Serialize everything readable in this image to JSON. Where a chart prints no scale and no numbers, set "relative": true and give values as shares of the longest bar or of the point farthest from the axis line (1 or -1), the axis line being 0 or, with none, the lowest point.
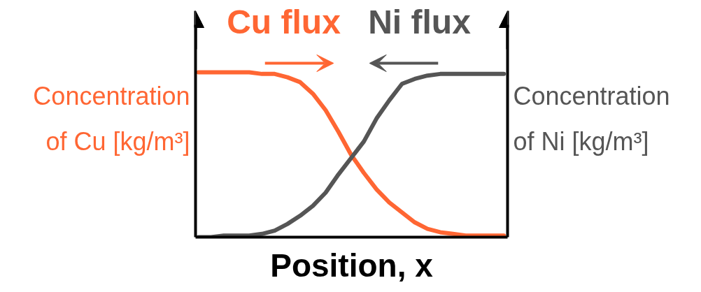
{
  "chart_data": {
    "type": "line",
    "relative": true,
    "xlabel": "Position, x",
    "ylabel": "Concentration of Cu [kg/m³]",
    "y2label": "Concentration of Ni [kg/m³]",
    "annotations": [
      "Cu flux",
      "Ni flux"
    ],
    "categories": [
      null,
      null,
      null,
      null,
      null,
      null,
      null,
      null,
      null,
      null,
      null,
      null,
      null,
      null,
      null,
      null,
      null,
      null,
      null,
      null,
      null,
      null,
      null,
      null,
      null
    ],
    "series": [
      {
        "color": "#ff6633",
        "values": [
          1,
          1,
          1,
          1,
          1,
          0.99,
          0.99,
          0.97,
          0.94,
          0.87,
          0.77,
          0.64,
          0.5,
          0.39,
          0.29,
          0.21,
          0.15,
          0.09,
          0.05,
          0.03,
          0.02,
          0.01,
          0.01,
          0.01,
          0.01
        ]
      },
      {
        "color": "#555555",
        "values": [
          0,
          0,
          0.01,
          0.01,
          0.01,
          0.02,
          0.04,
          0.08,
          0.13,
          0.19,
          0.27,
          0.38,
          0.48,
          0.58,
          0.72,
          0.83,
          0.93,
          0.96,
          0.98,
          0.99,
          0.99,
          0.99,
          0.99,
          0.99,
          0.99
        ]
      }
    ]
  }
}
